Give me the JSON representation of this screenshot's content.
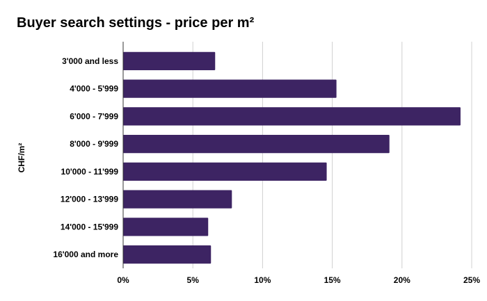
{
  "chart_data": {
    "type": "bar",
    "orientation": "horizontal",
    "title": "Buyer search settings - price per m²",
    "ylabel": "CHF/m²",
    "xlabel": "",
    "categories": [
      "3'000 and less",
      "4'000 - 5'999",
      "6'000 - 7'999",
      "8'000 - 9'999",
      "10'000 - 11'999",
      "12'000 - 13'999",
      "14'000 - 15'999",
      "16'000 and more"
    ],
    "values": [
      6.6,
      15.3,
      24.2,
      19.1,
      14.6,
      7.8,
      6.1,
      6.3
    ],
    "xlim": [
      0,
      25
    ],
    "xticks": [
      0,
      5,
      10,
      15,
      20,
      25
    ],
    "tick_suffix": "%",
    "grid": true,
    "bar_color": "#3d2463"
  }
}
